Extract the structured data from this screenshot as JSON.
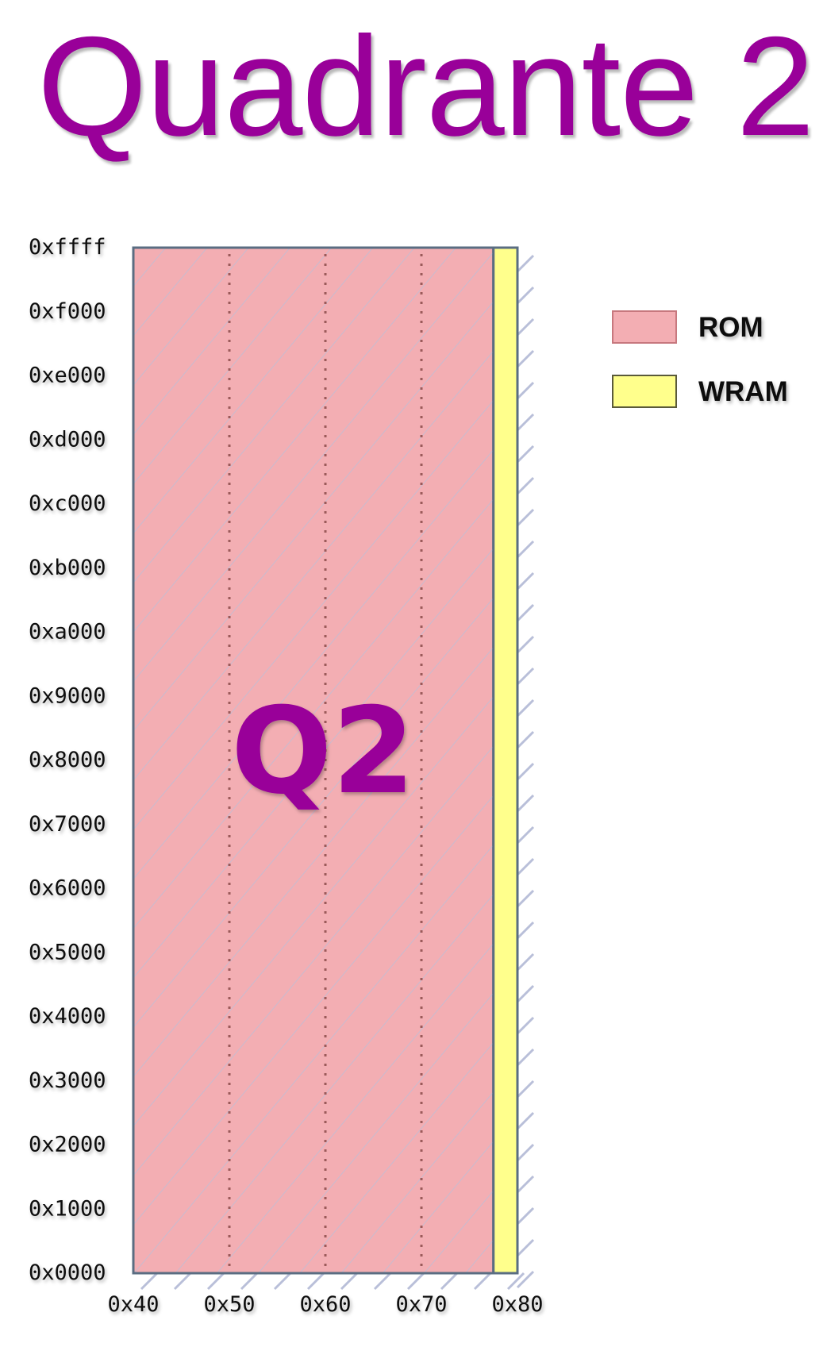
{
  "title": "Quadrante 2",
  "region_label": "Q2",
  "y_ticks": [
    "0xffff",
    "0xf000",
    "0xe000",
    "0xd000",
    "0xc000",
    "0xb000",
    "0xa000",
    "0x9000",
    "0x8000",
    "0x7000",
    "0x6000",
    "0x5000",
    "0x4000",
    "0x3000",
    "0x2000",
    "0x1000",
    "0x0000"
  ],
  "x_ticks": [
    "0x40",
    "0x50",
    "0x60",
    "0x70",
    "0x80"
  ],
  "legend": [
    {
      "label": "ROM",
      "color": "#f3aeb3",
      "border": "#c7787e"
    },
    {
      "label": "WRAM",
      "color": "#ffff8c",
      "border": "#5a5a3a"
    }
  ],
  "regions": [
    {
      "name": "ROM",
      "bank_start": 64,
      "bank_end": 124,
      "addr_start": 0,
      "addr_end": 65535,
      "color": "#f3aeb3"
    },
    {
      "name": "WRAM",
      "bank_start": 124,
      "bank_end": 128,
      "addr_start": 0,
      "addr_end": 65535,
      "color": "#ffff8c"
    }
  ],
  "colors": {
    "title": "#990099",
    "hatch": "#b9bfd9",
    "divider": "#9b5a5a",
    "frame": "#5a6d82"
  }
}
